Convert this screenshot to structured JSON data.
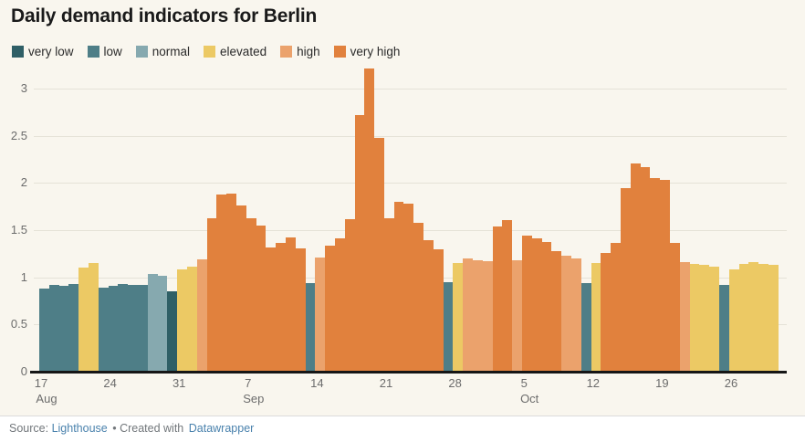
{
  "title": "Daily demand indicators for Berlin",
  "legend": {
    "items": [
      {
        "label": "very low",
        "key": "very low"
      },
      {
        "label": "low",
        "key": "low"
      },
      {
        "label": "normal",
        "key": "normal"
      },
      {
        "label": "elevated",
        "key": "elevated"
      },
      {
        "label": "high",
        "key": "high"
      },
      {
        "label": "very high",
        "key": "very high"
      }
    ]
  },
  "y_axis": {
    "ticks": [
      {
        "label": "0",
        "value": 0
      },
      {
        "label": "0.5",
        "value": 0.5
      },
      {
        "label": "1",
        "value": 1
      },
      {
        "label": "1.5",
        "value": 1.5
      },
      {
        "label": "2",
        "value": 2
      },
      {
        "label": "2.5",
        "value": 2.5
      },
      {
        "label": "3",
        "value": 3
      }
    ]
  },
  "x_axis": {
    "ticks": [
      {
        "day": "17",
        "month": "Aug",
        "day_index": 0
      },
      {
        "day": "24",
        "month": "",
        "day_index": 7
      },
      {
        "day": "31",
        "month": "",
        "day_index": 14
      },
      {
        "day": "7",
        "month": "Sep",
        "day_index": 21
      },
      {
        "day": "14",
        "month": "",
        "day_index": 28
      },
      {
        "day": "21",
        "month": "",
        "day_index": 35
      },
      {
        "day": "28",
        "month": "",
        "day_index": 42
      },
      {
        "day": "5",
        "month": "Oct",
        "day_index": 49
      },
      {
        "day": "12",
        "month": "",
        "day_index": 56
      },
      {
        "day": "19",
        "month": "",
        "day_index": 63
      },
      {
        "day": "26",
        "month": "",
        "day_index": 70
      }
    ]
  },
  "footer": {
    "source_label": "Source:",
    "source_link": "Lighthouse",
    "separator_text": "• Created with",
    "tool_link": "Datawrapper"
  },
  "chart_data": {
    "type": "bar",
    "title": "Daily demand indicators for Berlin",
    "xlabel": "",
    "ylabel": "",
    "ylim": [
      0,
      3.25
    ],
    "grid": true,
    "legend_position": "top",
    "colors": {
      "very low": "#2f5f66",
      "low": "#4e7e87",
      "normal": "#86a9af",
      "elevated": "#ecc964",
      "high": "#eba26c",
      "very high": "#e1813d"
    },
    "bars": [
      {
        "date": "Aug 17",
        "category": "low",
        "value": 0.88
      },
      {
        "date": "Aug 18",
        "category": "low",
        "value": 0.92
      },
      {
        "date": "Aug 19",
        "category": "low",
        "value": 0.91
      },
      {
        "date": "Aug 20",
        "category": "low",
        "value": 0.93
      },
      {
        "date": "Aug 21",
        "category": "elevated",
        "value": 1.1
      },
      {
        "date": "Aug 22",
        "category": "elevated",
        "value": 1.15
      },
      {
        "date": "Aug 23",
        "category": "low",
        "value": 0.89
      },
      {
        "date": "Aug 24",
        "category": "low",
        "value": 0.91
      },
      {
        "date": "Aug 25",
        "category": "low",
        "value": 0.93
      },
      {
        "date": "Aug 26",
        "category": "low",
        "value": 0.92
      },
      {
        "date": "Aug 27",
        "category": "low",
        "value": 0.92
      },
      {
        "date": "Aug 28",
        "category": "normal",
        "value": 1.04
      },
      {
        "date": "Aug 29",
        "category": "normal",
        "value": 1.02
      },
      {
        "date": "Aug 30",
        "category": "very low",
        "value": 0.85
      },
      {
        "date": "Aug 31",
        "category": "elevated",
        "value": 1.08
      },
      {
        "date": "Sep 1",
        "category": "elevated",
        "value": 1.11
      },
      {
        "date": "Sep 2",
        "category": "high",
        "value": 1.19
      },
      {
        "date": "Sep 3",
        "category": "very high",
        "value": 1.63
      },
      {
        "date": "Sep 4",
        "category": "very high",
        "value": 1.88
      },
      {
        "date": "Sep 5",
        "category": "very high",
        "value": 1.89
      },
      {
        "date": "Sep 6",
        "category": "very high",
        "value": 1.76
      },
      {
        "date": "Sep 7",
        "category": "very high",
        "value": 1.63
      },
      {
        "date": "Sep 8",
        "category": "very high",
        "value": 1.55
      },
      {
        "date": "Sep 9",
        "category": "very high",
        "value": 1.32
      },
      {
        "date": "Sep 10",
        "category": "very high",
        "value": 1.36
      },
      {
        "date": "Sep 11",
        "category": "very high",
        "value": 1.42
      },
      {
        "date": "Sep 12",
        "category": "very high",
        "value": 1.31
      },
      {
        "date": "Sep 13",
        "category": "low",
        "value": 0.94
      },
      {
        "date": "Sep 14",
        "category": "high",
        "value": 1.21
      },
      {
        "date": "Sep 15",
        "category": "very high",
        "value": 1.34
      },
      {
        "date": "Sep 16",
        "category": "very high",
        "value": 1.41
      },
      {
        "date": "Sep 17",
        "category": "very high",
        "value": 1.62
      },
      {
        "date": "Sep 18",
        "category": "very high",
        "value": 2.72
      },
      {
        "date": "Sep 19",
        "category": "very high",
        "value": 3.21
      },
      {
        "date": "Sep 20",
        "category": "very high",
        "value": 2.48
      },
      {
        "date": "Sep 21",
        "category": "very high",
        "value": 1.63
      },
      {
        "date": "Sep 22",
        "category": "very high",
        "value": 1.8
      },
      {
        "date": "Sep 23",
        "category": "very high",
        "value": 1.78
      },
      {
        "date": "Sep 24",
        "category": "very high",
        "value": 1.58
      },
      {
        "date": "Sep 25",
        "category": "very high",
        "value": 1.39
      },
      {
        "date": "Sep 26",
        "category": "very high",
        "value": 1.3
      },
      {
        "date": "Sep 27",
        "category": "low",
        "value": 0.95
      },
      {
        "date": "Sep 28",
        "category": "elevated",
        "value": 1.15
      },
      {
        "date": "Sep 29",
        "category": "high",
        "value": 1.2
      },
      {
        "date": "Sep 30",
        "category": "high",
        "value": 1.18
      },
      {
        "date": "Oct 1",
        "category": "high",
        "value": 1.17
      },
      {
        "date": "Oct 2",
        "category": "very high",
        "value": 1.54
      },
      {
        "date": "Oct 3",
        "category": "very high",
        "value": 1.61
      },
      {
        "date": "Oct 4",
        "category": "high",
        "value": 1.18
      },
      {
        "date": "Oct 5",
        "category": "very high",
        "value": 1.44
      },
      {
        "date": "Oct 6",
        "category": "very high",
        "value": 1.41
      },
      {
        "date": "Oct 7",
        "category": "very high",
        "value": 1.37
      },
      {
        "date": "Oct 8",
        "category": "very high",
        "value": 1.28
      },
      {
        "date": "Oct 9",
        "category": "high",
        "value": 1.23
      },
      {
        "date": "Oct 10",
        "category": "high",
        "value": 1.2
      },
      {
        "date": "Oct 11",
        "category": "low",
        "value": 0.94
      },
      {
        "date": "Oct 12",
        "category": "elevated",
        "value": 1.15
      },
      {
        "date": "Oct 13",
        "category": "very high",
        "value": 1.26
      },
      {
        "date": "Oct 14",
        "category": "very high",
        "value": 1.36
      },
      {
        "date": "Oct 15",
        "category": "very high",
        "value": 1.95
      },
      {
        "date": "Oct 16",
        "category": "very high",
        "value": 2.21
      },
      {
        "date": "Oct 17",
        "category": "very high",
        "value": 2.17
      },
      {
        "date": "Oct 18",
        "category": "very high",
        "value": 2.05
      },
      {
        "date": "Oct 19",
        "category": "very high",
        "value": 2.03
      },
      {
        "date": "Oct 20",
        "category": "very high",
        "value": 1.36
      },
      {
        "date": "Oct 21",
        "category": "high",
        "value": 1.16
      },
      {
        "date": "Oct 22",
        "category": "elevated",
        "value": 1.14
      },
      {
        "date": "Oct 23",
        "category": "elevated",
        "value": 1.13
      },
      {
        "date": "Oct 24",
        "category": "elevated",
        "value": 1.11
      },
      {
        "date": "Oct 25",
        "category": "low",
        "value": 0.92
      },
      {
        "date": "Oct 26",
        "category": "elevated",
        "value": 1.08
      },
      {
        "date": "Oct 27",
        "category": "elevated",
        "value": 1.14
      },
      {
        "date": "Oct 28",
        "category": "elevated",
        "value": 1.16
      },
      {
        "date": "Oct 29",
        "category": "elevated",
        "value": 1.14
      },
      {
        "date": "Oct 30",
        "category": "elevated",
        "value": 1.13
      }
    ]
  }
}
